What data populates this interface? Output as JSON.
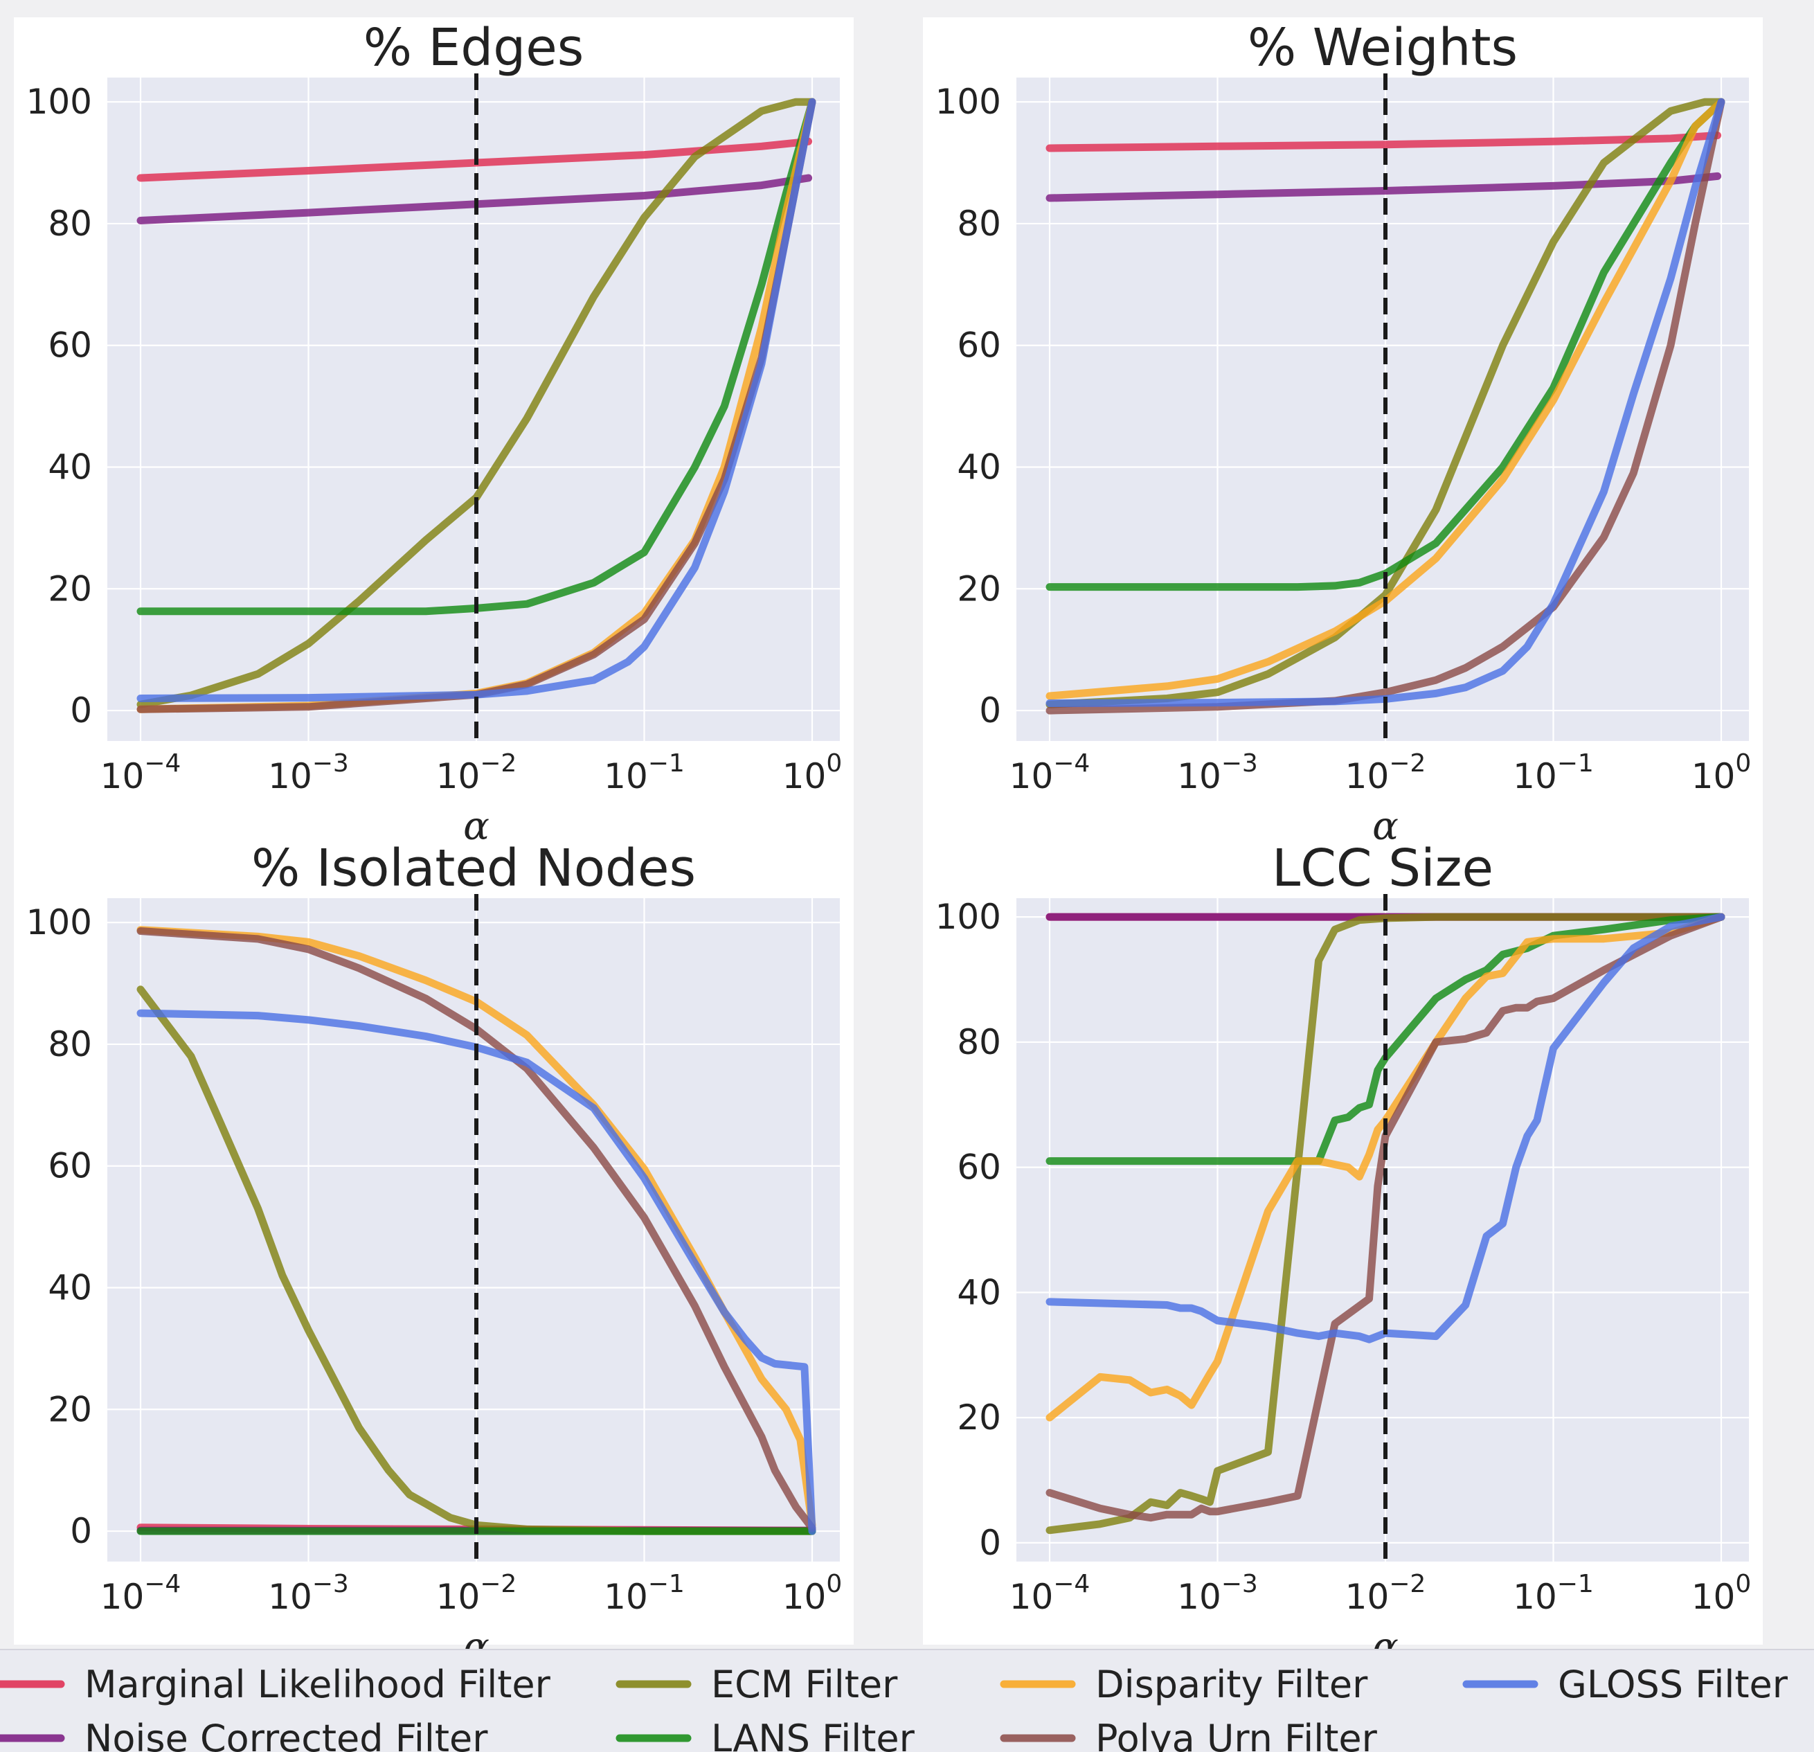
{
  "alpha_marker": 0.01,
  "chart_data": [
    {
      "type": "line",
      "title": "% Edges",
      "xlabel": "α",
      "xscale": "log",
      "xlim": [
        0.0001,
        1
      ],
      "ylim": [
        -5,
        104
      ],
      "yticks": [
        0,
        20,
        40,
        60,
        80,
        100
      ],
      "series": [
        {
          "name": "Marginal Likelihood Filter",
          "color": "#e0284d",
          "x": [
            0.0001,
            0.001,
            0.01,
            0.1,
            0.5,
            0.95
          ],
          "y": [
            87.5,
            88.7,
            90,
            91.3,
            92.7,
            93.5
          ]
        },
        {
          "name": "Noise Corrected Filter",
          "color": "#7a1680",
          "x": [
            0.0001,
            0.001,
            0.01,
            0.1,
            0.5,
            0.95
          ],
          "y": [
            80.5,
            81.8,
            83.2,
            84.6,
            86.3,
            87.5
          ]
        },
        {
          "name": "ECM Filter",
          "color": "#7f7f0c",
          "x": [
            0.0001,
            0.0002,
            0.0005,
            0.001,
            0.002,
            0.005,
            0.01,
            0.02,
            0.05,
            0.1,
            0.2,
            0.5,
            0.8,
            1.0
          ],
          "y": [
            1,
            2.5,
            6,
            11,
            18,
            28,
            35,
            48,
            68,
            81,
            91,
            98.5,
            100,
            100
          ]
        },
        {
          "name": "LANS Filter",
          "color": "#108a10",
          "x": [
            0.0001,
            0.001,
            0.005,
            0.01,
            0.02,
            0.05,
            0.1,
            0.2,
            0.3,
            0.5,
            0.7,
            1.0
          ],
          "y": [
            16.3,
            16.3,
            16.3,
            16.8,
            17.5,
            21,
            26,
            40,
            50,
            70,
            85,
            100
          ]
        },
        {
          "name": "Disparity Filter",
          "color": "#fba51a",
          "x": [
            0.0001,
            0.001,
            0.01,
            0.02,
            0.05,
            0.1,
            0.2,
            0.3,
            0.5,
            0.7,
            1.0
          ],
          "y": [
            0.2,
            0.8,
            2.8,
            4.5,
            9.5,
            16,
            28,
            40,
            63,
            82,
            100
          ]
        },
        {
          "name": "Polya Urn Filter",
          "color": "#8b4a46",
          "x": [
            0.0001,
            0.001,
            0.01,
            0.02,
            0.05,
            0.1,
            0.2,
            0.3,
            0.5,
            0.7,
            1.0
          ],
          "y": [
            0.2,
            0.6,
            2.6,
            4.3,
            9.2,
            15,
            27.5,
            38,
            58,
            78,
            100
          ]
        },
        {
          "name": "GLOSS Filter",
          "color": "#4a6fe3",
          "x": [
            0.0001,
            0.001,
            0.01,
            0.02,
            0.05,
            0.08,
            0.1,
            0.2,
            0.3,
            0.5,
            0.7,
            1.0
          ],
          "y": [
            2,
            2.1,
            2.6,
            3.2,
            5,
            8,
            10.5,
            23.5,
            36,
            57,
            78,
            100
          ]
        }
      ]
    },
    {
      "type": "line",
      "title": "% Weights",
      "xlabel": "α",
      "xscale": "log",
      "xlim": [
        0.0001,
        1
      ],
      "ylim": [
        -5,
        104
      ],
      "yticks": [
        0,
        20,
        40,
        60,
        80,
        100
      ],
      "series": [
        {
          "name": "Marginal Likelihood Filter",
          "color": "#e0284d",
          "x": [
            0.0001,
            0.001,
            0.01,
            0.1,
            0.5,
            0.95
          ],
          "y": [
            92.4,
            92.7,
            93,
            93.5,
            94,
            94.5
          ]
        },
        {
          "name": "Noise Corrected Filter",
          "color": "#7a1680",
          "x": [
            0.0001,
            0.001,
            0.01,
            0.1,
            0.5,
            0.95
          ],
          "y": [
            84.2,
            84.8,
            85.4,
            86.2,
            87,
            87.8
          ]
        },
        {
          "name": "ECM Filter",
          "color": "#7f7f0c",
          "x": [
            0.0001,
            0.0005,
            0.001,
            0.002,
            0.005,
            0.01,
            0.02,
            0.05,
            0.1,
            0.2,
            0.5,
            0.8,
            1.0
          ],
          "y": [
            1,
            2,
            3,
            6,
            12,
            19,
            33,
            60,
            77,
            90,
            98.5,
            100,
            100
          ]
        },
        {
          "name": "LANS Filter",
          "color": "#108a10",
          "x": [
            0.0001,
            0.001,
            0.003,
            0.005,
            0.007,
            0.01,
            0.02,
            0.05,
            0.1,
            0.2,
            0.5,
            0.7,
            1.0
          ],
          "y": [
            20.3,
            20.3,
            20.3,
            20.5,
            21,
            22.5,
            27.5,
            40,
            53,
            72,
            90,
            96,
            100
          ]
        },
        {
          "name": "Disparity Filter",
          "color": "#fba51a",
          "x": [
            0.0001,
            0.0005,
            0.001,
            0.002,
            0.005,
            0.01,
            0.02,
            0.05,
            0.1,
            0.2,
            0.5,
            0.7,
            1.0
          ],
          "y": [
            2.4,
            4,
            5.2,
            8,
            13,
            18,
            25,
            38,
            51,
            67,
            87,
            96,
            100
          ]
        },
        {
          "name": "Polya Urn Filter",
          "color": "#8b4a46",
          "x": [
            0.0001,
            0.001,
            0.005,
            0.01,
            0.02,
            0.03,
            0.05,
            0.1,
            0.2,
            0.3,
            0.5,
            0.7,
            1.0
          ],
          "y": [
            0,
            0.6,
            1.6,
            3,
            5,
            7,
            10.5,
            17,
            28.5,
            39,
            60,
            80,
            100
          ]
        },
        {
          "name": "GLOSS Filter",
          "color": "#4a6fe3",
          "x": [
            0.0001,
            0.001,
            0.005,
            0.01,
            0.02,
            0.03,
            0.05,
            0.07,
            0.1,
            0.2,
            0.3,
            0.5,
            0.7,
            1.0
          ],
          "y": [
            1.2,
            1.3,
            1.5,
            1.9,
            2.8,
            3.8,
            6.5,
            10.5,
            17.5,
            36,
            52,
            71,
            86,
            100
          ]
        }
      ]
    },
    {
      "type": "line",
      "title": "% Isolated Nodes",
      "xlabel": "α",
      "xscale": "log",
      "xlim": [
        0.0001,
        1
      ],
      "ylim": [
        -5,
        104
      ],
      "yticks": [
        0,
        20,
        40,
        60,
        80,
        100
      ],
      "series": [
        {
          "name": "Marginal Likelihood Filter",
          "color": "#e0284d",
          "x": [
            0.0001,
            0.001,
            0.01,
            0.1,
            1.0
          ],
          "y": [
            0.6,
            0.4,
            0.3,
            0.2,
            0.1
          ]
        },
        {
          "name": "Noise Corrected Filter",
          "color": "#7a1680",
          "x": [
            0.0001,
            0.001,
            0.01,
            0.1,
            1.0
          ],
          "y": [
            0.1,
            0.1,
            0.1,
            0.1,
            0.1
          ]
        },
        {
          "name": "ECM Filter",
          "color": "#7f7f0c",
          "x": [
            0.0001,
            0.0002,
            0.0003,
            0.0005,
            0.0007,
            0.001,
            0.002,
            0.003,
            0.004,
            0.005,
            0.007,
            0.01,
            0.02,
            0.1,
            1.0
          ],
          "y": [
            89,
            78,
            67,
            53,
            42,
            33,
            17,
            10,
            6,
            4.5,
            2.2,
            1,
            0.3,
            0,
            0
          ]
        },
        {
          "name": "LANS Filter",
          "color": "#108a10",
          "x": [
            0.0001,
            0.001,
            0.01,
            0.1,
            1.0
          ],
          "y": [
            0,
            0,
            0,
            0,
            0
          ]
        },
        {
          "name": "Disparity Filter",
          "color": "#fba51a",
          "x": [
            0.0001,
            0.0005,
            0.001,
            0.002,
            0.005,
            0.01,
            0.02,
            0.05,
            0.1,
            0.2,
            0.3,
            0.5,
            0.7,
            0.85,
            1.0
          ],
          "y": [
            98.8,
            97.7,
            96.8,
            94.5,
            90.5,
            87,
            81.5,
            70,
            59.5,
            45,
            36,
            25,
            20,
            15,
            1
          ]
        },
        {
          "name": "Polya Urn Filter",
          "color": "#8b4a46",
          "x": [
            0.0001,
            0.0005,
            0.001,
            0.002,
            0.005,
            0.01,
            0.02,
            0.05,
            0.1,
            0.2,
            0.3,
            0.5,
            0.6,
            0.8,
            1.0
          ],
          "y": [
            98.6,
            97.3,
            95.6,
            92.5,
            87.5,
            82.5,
            76,
            63,
            51.5,
            37,
            27,
            15.5,
            10,
            4,
            0.5
          ]
        },
        {
          "name": "GLOSS Filter",
          "color": "#4a6fe3",
          "x": [
            0.0001,
            0.0005,
            0.001,
            0.002,
            0.005,
            0.01,
            0.02,
            0.05,
            0.1,
            0.2,
            0.3,
            0.4,
            0.5,
            0.6,
            0.9,
            1.0
          ],
          "y": [
            85.1,
            84.7,
            84,
            83,
            81.3,
            79.5,
            77,
            69.5,
            58,
            44,
            36,
            31.5,
            28.5,
            27.5,
            27,
            0
          ]
        }
      ]
    },
    {
      "type": "line",
      "title": "LCC Size",
      "xlabel": "α",
      "xscale": "log",
      "xlim": [
        0.0001,
        1
      ],
      "ylim": [
        -3,
        103
      ],
      "yticks": [
        0,
        20,
        40,
        60,
        80,
        100
      ],
      "series": [
        {
          "name": "Marginal Likelihood Filter",
          "color": "#e0284d",
          "x": [
            0.0001,
            0.001,
            0.01,
            0.1,
            1.0
          ],
          "y": [
            100,
            100,
            100,
            100,
            100
          ]
        },
        {
          "name": "Noise Corrected Filter",
          "color": "#7a1680",
          "x": [
            0.0001,
            0.001,
            0.01,
            0.1,
            1.0
          ],
          "y": [
            100,
            100,
            100,
            100,
            100
          ]
        },
        {
          "name": "ECM Filter",
          "color": "#7f7f0c",
          "x": [
            0.0001,
            0.0002,
            0.0003,
            0.0004,
            0.0005,
            0.0006,
            0.0007,
            0.0008,
            0.0009,
            0.001,
            0.002,
            0.003,
            0.004,
            0.005,
            0.007,
            0.01,
            0.02,
            0.1,
            1.0
          ],
          "y": [
            2,
            3,
            4,
            6.5,
            6,
            8,
            7.5,
            7,
            6.5,
            11.5,
            14.5,
            60,
            93,
            98,
            99.5,
            99.8,
            100,
            100,
            100
          ]
        },
        {
          "name": "LANS Filter",
          "color": "#108a10",
          "x": [
            0.0001,
            0.001,
            0.003,
            0.004,
            0.005,
            0.006,
            0.007,
            0.008,
            0.009,
            0.01,
            0.02,
            0.03,
            0.04,
            0.05,
            0.07,
            0.1,
            0.2,
            0.5,
            1.0
          ],
          "y": [
            61,
            61,
            61,
            61,
            67.5,
            68,
            69.5,
            70,
            75.5,
            77.5,
            87,
            90,
            91.5,
            94,
            95,
            97,
            98,
            99.5,
            100
          ]
        },
        {
          "name": "Disparity Filter",
          "color": "#fba51a",
          "x": [
            0.0001,
            0.0002,
            0.0003,
            0.0004,
            0.0005,
            0.0006,
            0.0007,
            0.0009,
            0.001,
            0.002,
            0.003,
            0.004,
            0.006,
            0.007,
            0.008,
            0.009,
            0.01,
            0.02,
            0.03,
            0.04,
            0.05,
            0.07,
            0.1,
            0.2,
            0.5,
            1.0
          ],
          "y": [
            20,
            26.5,
            26,
            24,
            24.5,
            23.5,
            22,
            27,
            29,
            53,
            61,
            61,
            60,
            58.5,
            62,
            66,
            67.5,
            80,
            87,
            90.5,
            91,
            96,
            96.5,
            96.5,
            97.5,
            100
          ]
        },
        {
          "name": "Polya Urn Filter",
          "color": "#8b4a46",
          "x": [
            0.0001,
            0.0002,
            0.0003,
            0.0004,
            0.0005,
            0.0006,
            0.0007,
            0.0008,
            0.0009,
            0.001,
            0.002,
            0.003,
            0.005,
            0.008,
            0.009,
            0.01,
            0.02,
            0.03,
            0.04,
            0.05,
            0.06,
            0.07,
            0.08,
            0.1,
            0.2,
            0.5,
            1.0
          ],
          "y": [
            8,
            5.5,
            4.5,
            4,
            4.5,
            4.5,
            4.5,
            5.5,
            5,
            5,
            6.5,
            7.5,
            35,
            39,
            57,
            65,
            80,
            80.5,
            81.5,
            85,
            85.5,
            85.5,
            86.5,
            87,
            91.5,
            97,
            100
          ]
        },
        {
          "name": "GLOSS Filter",
          "color": "#4a6fe3",
          "x": [
            0.0001,
            0.0005,
            0.0006,
            0.0007,
            0.0008,
            0.001,
            0.002,
            0.003,
            0.004,
            0.005,
            0.007,
            0.008,
            0.01,
            0.02,
            0.03,
            0.04,
            0.05,
            0.06,
            0.07,
            0.08,
            0.1,
            0.2,
            0.3,
            0.5,
            1.0
          ],
          "y": [
            38.5,
            38,
            37.5,
            37.5,
            37,
            35.5,
            34.5,
            33.5,
            33,
            33.5,
            33,
            32.5,
            33.5,
            33,
            38,
            49,
            51,
            60,
            65,
            67.5,
            79,
            89.5,
            95,
            98.5,
            100
          ]
        }
      ]
    }
  ],
  "legend": [
    {
      "label": "Marginal Likelihood Filter",
      "color": "#e0284d"
    },
    {
      "label": "Noise Corrected Filter",
      "color": "#7a1680"
    },
    {
      "label": "ECM Filter",
      "color": "#7f7f0c"
    },
    {
      "label": "LANS Filter",
      "color": "#108a10"
    },
    {
      "label": "Disparity Filter",
      "color": "#fba51a"
    },
    {
      "label": "Polya Urn Filter",
      "color": "#8b4a46"
    },
    {
      "label": "GLOSS Filter",
      "color": "#4a6fe3"
    }
  ]
}
